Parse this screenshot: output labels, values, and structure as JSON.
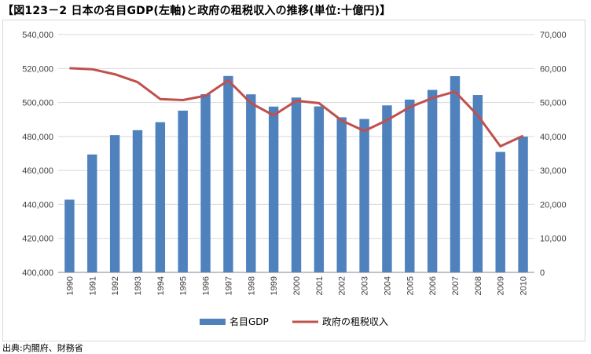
{
  "title": "【図123－2 日本の名目GDP(左軸)と政府の租税収入の推移(単位:十億円)】",
  "source": "出典:内閣府、財務省",
  "chart_data": {
    "type": "bar",
    "title": "【図123－2 日本の名目GDP(左軸)と政府の租税収入の推移(単位:十億円)】",
    "categories": [
      "1990",
      "1991",
      "1992",
      "1993",
      "1994",
      "1995",
      "1996",
      "1997",
      "1998",
      "1999",
      "2000",
      "2001",
      "2002",
      "2003",
      "2004",
      "2005",
      "2006",
      "2007",
      "2008",
      "2009",
      "2010"
    ],
    "left_axis": {
      "ylim": [
        400000,
        540000
      ],
      "ticks": [
        "400,000",
        "420,000",
        "440,000",
        "460,000",
        "480,000",
        "500,000",
        "520,000",
        "540,000"
      ]
    },
    "right_axis": {
      "ylim": [
        0,
        70000
      ],
      "ticks": [
        "0",
        "10,000",
        "20,000",
        "30,000",
        "40,000",
        "50,000",
        "60,000",
        "70,000"
      ]
    },
    "series": [
      {
        "name": "名目GDP",
        "type": "bar",
        "axis": "left",
        "color": "#4f81bd",
        "values": [
          442800,
          469400,
          480800,
          483700,
          488400,
          495200,
          504900,
          515600,
          504800,
          497600,
          502900,
          497700,
          491300,
          490300,
          498300,
          501700,
          507400,
          515500,
          504400,
          470900,
          479900
        ]
      },
      {
        "name": "政府の租税収入",
        "type": "line",
        "axis": "right",
        "color": "#c0504d",
        "values": [
          60100,
          59800,
          58300,
          56000,
          51000,
          50700,
          52000,
          56500,
          49800,
          46200,
          50500,
          49800,
          44700,
          41600,
          44800,
          48600,
          51300,
          53200,
          46200,
          37100,
          40200
        ]
      }
    ],
    "grid": true,
    "legend": "bottom"
  }
}
